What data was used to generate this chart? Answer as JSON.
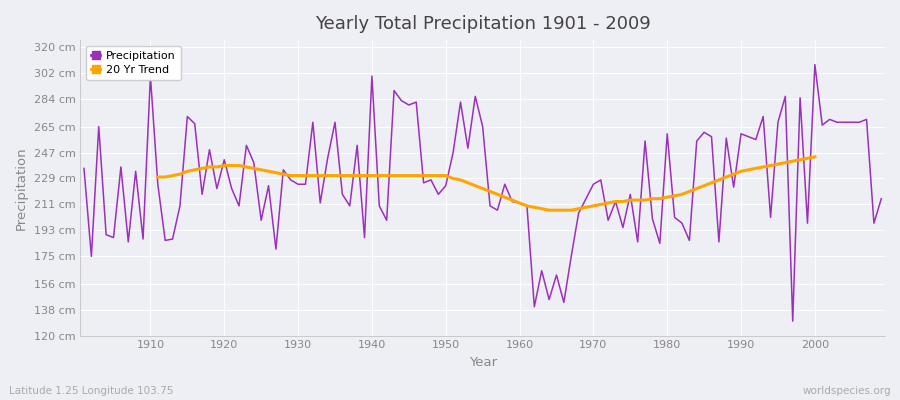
{
  "title": "Yearly Total Precipitation 1901 - 2009",
  "xlabel": "Year",
  "ylabel": "Precipitation",
  "subtitle": "Latitude 1.25 Longitude 103.75",
  "watermark": "worldspecies.org",
  "years": [
    1901,
    1902,
    1903,
    1904,
    1905,
    1906,
    1907,
    1908,
    1909,
    1910,
    1911,
    1912,
    1913,
    1914,
    1915,
    1916,
    1917,
    1918,
    1919,
    1920,
    1921,
    1922,
    1923,
    1924,
    1925,
    1926,
    1927,
    1928,
    1929,
    1930,
    1931,
    1932,
    1933,
    1934,
    1935,
    1936,
    1937,
    1938,
    1939,
    1940,
    1941,
    1942,
    1943,
    1944,
    1945,
    1946,
    1947,
    1948,
    1949,
    1950,
    1951,
    1952,
    1953,
    1954,
    1955,
    1956,
    1957,
    1958,
    1959,
    1960,
    1961,
    1962,
    1963,
    1964,
    1965,
    1966,
    1967,
    1968,
    1969,
    1970,
    1971,
    1972,
    1973,
    1974,
    1975,
    1976,
    1977,
    1978,
    1979,
    1980,
    1981,
    1982,
    1983,
    1984,
    1985,
    1986,
    1987,
    1988,
    1989,
    1990,
    1991,
    1992,
    1993,
    1994,
    1995,
    1996,
    1997,
    1998,
    1999,
    2000,
    2001,
    2002,
    2003,
    2004,
    2005,
    2006,
    2007,
    2008,
    2009
  ],
  "precip": [
    236,
    175,
    265,
    190,
    188,
    237,
    185,
    234,
    187,
    300,
    225,
    186,
    187,
    210,
    272,
    267,
    218,
    249,
    222,
    242,
    222,
    210,
    252,
    240,
    200,
    224,
    180,
    235,
    228,
    225,
    225,
    268,
    212,
    243,
    268,
    218,
    210,
    252,
    188,
    300,
    210,
    200,
    290,
    283,
    280,
    282,
    226,
    228,
    218,
    224,
    247,
    282,
    250,
    286,
    265,
    210,
    207,
    225,
    213,
    212,
    210,
    140,
    165,
    145,
    162,
    143,
    175,
    205,
    215,
    225,
    228,
    200,
    213,
    195,
    218,
    185,
    255,
    201,
    184,
    260,
    202,
    198,
    186,
    255,
    261,
    258,
    185,
    257,
    223,
    260,
    258,
    256,
    272,
    202,
    268,
    286,
    130,
    285,
    198,
    308,
    266,
    270,
    268,
    268,
    268,
    268,
    270,
    198,
    215
  ],
  "trend_years": [
    1911,
    1912,
    1913,
    1914,
    1915,
    1916,
    1917,
    1918,
    1919,
    1920,
    1921,
    1922,
    1923,
    1924,
    1925,
    1926,
    1927,
    1928,
    1929,
    1930,
    1931,
    1932,
    1933,
    1934,
    1935,
    1936,
    1937,
    1938,
    1939,
    1940,
    1941,
    1942,
    1943,
    1944,
    1945,
    1946,
    1947,
    1948,
    1949,
    1950,
    1951,
    1952,
    1953,
    1954,
    1955,
    1956,
    1957,
    1958,
    1959,
    1960,
    1961,
    1962,
    1963,
    1964,
    1965,
    1966,
    1967,
    1968,
    1969,
    1970,
    1971,
    1972,
    1973,
    1974,
    1975,
    1976,
    1977,
    1978,
    1979,
    1980,
    1981,
    1982,
    1983,
    1984,
    1985,
    1986,
    1987,
    1988,
    1989,
    1990,
    1991,
    1992,
    1993,
    1994,
    1995,
    1996,
    1997,
    1998,
    1999,
    2000
  ],
  "trend": [
    230,
    230,
    231,
    232,
    234,
    235,
    236,
    237,
    237,
    238,
    238,
    238,
    237,
    236,
    235,
    234,
    233,
    232,
    231,
    231,
    231,
    231,
    231,
    231,
    231,
    231,
    231,
    231,
    231,
    231,
    231,
    231,
    231,
    231,
    231,
    231,
    231,
    231,
    231,
    231,
    229,
    228,
    226,
    224,
    222,
    220,
    218,
    216,
    214,
    212,
    210,
    209,
    208,
    207,
    207,
    207,
    207,
    208,
    209,
    210,
    211,
    212,
    213,
    213,
    214,
    214,
    214,
    215,
    215,
    216,
    217,
    218,
    220,
    222,
    224,
    226,
    228,
    230,
    232,
    234,
    235,
    236,
    237,
    238,
    239,
    240,
    241,
    242,
    243,
    244
  ],
  "precip_color": "#9B30BB",
  "trend_color": "#FFA500",
  "bg_color": "#EEEEF5",
  "ylim_min": 120,
  "ylim_max": 325,
  "ytick_labels": [
    "120 cm",
    "138 cm",
    "156 cm",
    "175 cm",
    "193 cm",
    "211 cm",
    "229 cm",
    "247 cm",
    "265 cm",
    "284 cm",
    "302 cm",
    "320 cm"
  ],
  "ytick_values": [
    120,
    138,
    156,
    175,
    193,
    211,
    229,
    247,
    265,
    284,
    302,
    320
  ],
  "xtick_values": [
    1910,
    1920,
    1930,
    1940,
    1950,
    1960,
    1970,
    1980,
    1990,
    2000
  ],
  "grid_color": "#FFFFFF",
  "spine_color": "#BBBBBB",
  "tick_label_color": "#888888",
  "title_color": "#444444",
  "axis_label_color": "#888888"
}
